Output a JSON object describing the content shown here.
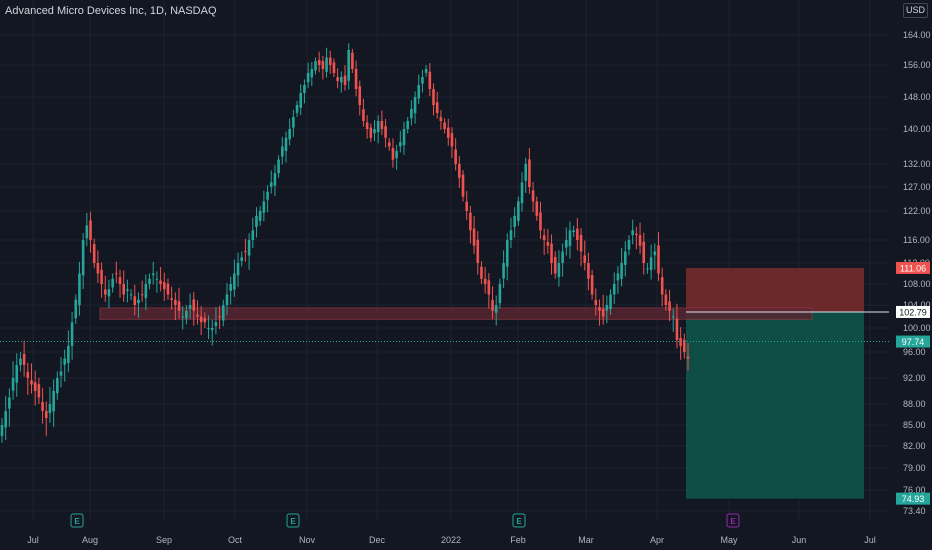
{
  "header": {
    "symbol_title": "Advanced Micro Devices Inc, 1D, NASDAQ",
    "currency_button": "USD"
  },
  "price_axis": {
    "ticks": [
      "164.00",
      "156.00",
      "148.00",
      "140.00",
      "132.00",
      "127.00",
      "122.00",
      "116.00",
      "112.00",
      "108.00",
      "104.00",
      "100.00",
      "96.00",
      "92.00",
      "88.00",
      "85.00",
      "82.00",
      "79.00",
      "76.00",
      "73.40"
    ]
  },
  "time_axis": {
    "labels": [
      "Jul",
      "Aug",
      "Sep",
      "Oct",
      "Nov",
      "Dec",
      "2022",
      "Feb",
      "Mar",
      "Apr",
      "May",
      "Jun",
      "Jul"
    ]
  },
  "price_badges": {
    "stop_price": "111.06",
    "entry_price": "102.79",
    "last_price": "97.74",
    "target_price": "74.93"
  },
  "colors": {
    "background": "#131722",
    "up": "#26a69a",
    "down": "#ef5350",
    "stop_zone": "#7a2b2d",
    "target_zone": "#0e5449",
    "support_zone": "#5a2530"
  },
  "events": {
    "earnings_label": "E",
    "earnings_color": "#26a69a",
    "upcoming_earnings_color": "#9c27b0"
  },
  "chart_data": {
    "type": "candlestick",
    "ohlc_closes": [
      85,
      87,
      89,
      92,
      94,
      95,
      94,
      92,
      91,
      90,
      89,
      87,
      86,
      88,
      90,
      92,
      93,
      95,
      97,
      101,
      105,
      110,
      116,
      119,
      116,
      112,
      110,
      108,
      106,
      107,
      109,
      110,
      108,
      106,
      107,
      106,
      104,
      105,
      106,
      108,
      109,
      110,
      109,
      108,
      107,
      106,
      105,
      104,
      103,
      102,
      103,
      104,
      103,
      102,
      101,
      101,
      100,
      100,
      101,
      102,
      104,
      106,
      108,
      110,
      112,
      113,
      114,
      116,
      118,
      121,
      122,
      124,
      126,
      128,
      130,
      133,
      136,
      138,
      140,
      143,
      146,
      149,
      151,
      154,
      155,
      157,
      156,
      155,
      158,
      156,
      154,
      152,
      153,
      151,
      160,
      155,
      150,
      146,
      142,
      140,
      138,
      140,
      142,
      140,
      138,
      136,
      133,
      135,
      137,
      140,
      142,
      145,
      148,
      151,
      153,
      155,
      150,
      146,
      144,
      142,
      140,
      138,
      136,
      132,
      129,
      125,
      122,
      118,
      115,
      112,
      109,
      108,
      106,
      103,
      104,
      108,
      112,
      116,
      118,
      121,
      124,
      128,
      132,
      127,
      124,
      121,
      118,
      116,
      115,
      112,
      110,
      112,
      114,
      116,
      118,
      118,
      116,
      114,
      112,
      109,
      106,
      104,
      103,
      102,
      104,
      106,
      108,
      110,
      112,
      114,
      116,
      118,
      117,
      115,
      112,
      111,
      113,
      114,
      110,
      106,
      104,
      103,
      102,
      98,
      97,
      96,
      95
    ],
    "price_range": [
      73.4,
      166
    ],
    "stop_zone": [
      102.79,
      111.06
    ],
    "target_zone": [
      74.93,
      102.79
    ],
    "support_zone": [
      101.5,
      103.5
    ],
    "entry": 102.79,
    "last": 97.74
  }
}
